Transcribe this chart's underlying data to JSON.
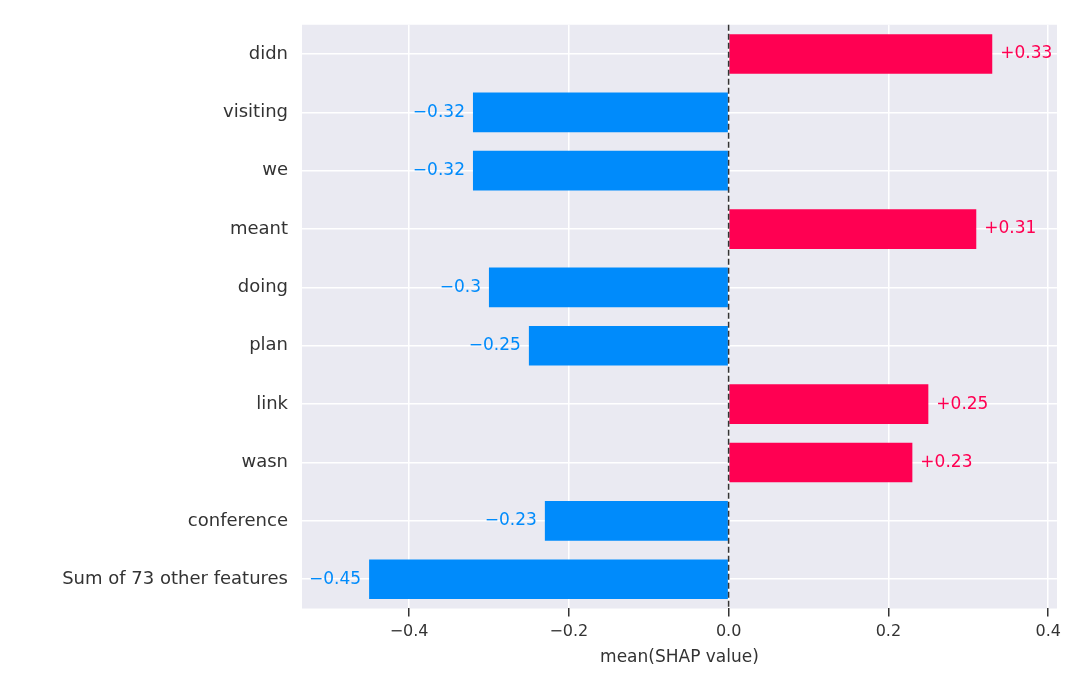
{
  "chart_data": {
    "type": "bar",
    "orientation": "horizontal",
    "xlabel": "mean(SHAP value)",
    "categories": [
      "didn",
      "visiting",
      "we",
      "meant",
      "doing",
      "plan",
      "link",
      "wasn",
      "conference",
      "Sum of 73 other features"
    ],
    "values": [
      0.33,
      -0.32,
      -0.32,
      0.31,
      -0.3,
      -0.25,
      0.25,
      0.23,
      -0.23,
      -0.45
    ],
    "colors": [
      "#ff0052",
      "#008bfb",
      "#008bfb",
      "#ff0052",
      "#008bfb",
      "#008bfb",
      "#ff0052",
      "#ff0052",
      "#008bfb",
      "#008bfb"
    ],
    "value_labels": [
      "+0.33",
      "−0.32",
      "−0.32",
      "+0.31",
      "−0.3",
      "−0.25",
      "+0.25",
      "+0.23",
      "−0.23",
      "−0.45"
    ],
    "xlim": [
      -0.534,
      0.411
    ],
    "xticks": [
      {
        "value": -0.4,
        "label": "−0.4"
      },
      {
        "value": -0.2,
        "label": "−0.2"
      },
      {
        "value": 0,
        "label": "0.0"
      },
      {
        "value": 0.2,
        "label": "0.2"
      },
      {
        "value": 0.4,
        "label": "0.4"
      }
    ],
    "ref_lines": [
      {
        "axis": "x",
        "value": 0,
        "color": "#333333",
        "line_style": "dashed"
      }
    ],
    "grid": true,
    "legend": false
  }
}
